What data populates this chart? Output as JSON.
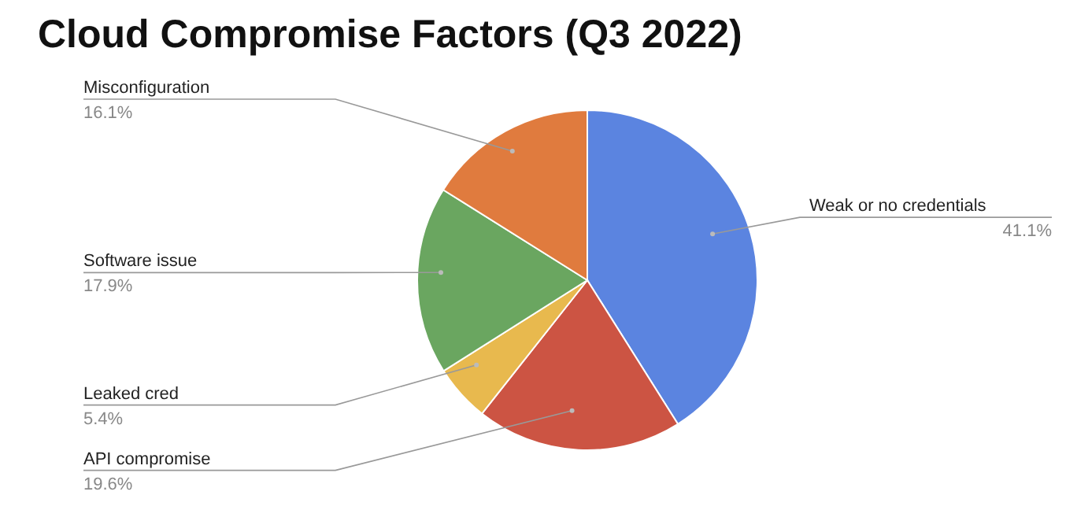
{
  "chart_data": {
    "type": "pie",
    "title": "Cloud Compromise Factors (Q3 2022)",
    "categories": [
      "Weak or no credentials",
      "API compromise",
      "Leaked cred",
      "Software issue",
      "Misconfiguration"
    ],
    "values": [
      41.1,
      19.6,
      5.4,
      17.9,
      16.1
    ],
    "value_labels": [
      "41.1%",
      "19.6%",
      "5.4%",
      "17.9%",
      "16.1%"
    ],
    "colors": [
      "#5b84e0",
      "#cc5443",
      "#e8b94e",
      "#6aa660",
      "#e07b3e"
    ],
    "legend": false
  }
}
